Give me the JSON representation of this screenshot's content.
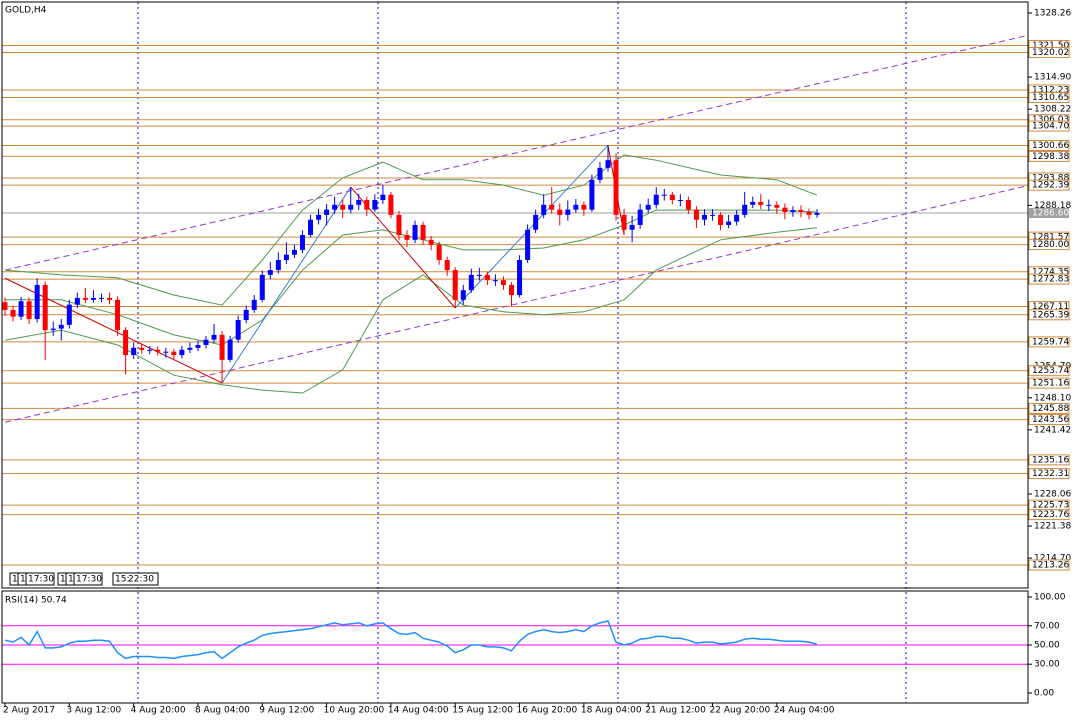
{
  "chart_data": {
    "type": "candlestick",
    "title": "GOLD,H4",
    "categories": [
      "2 Aug 2017",
      null,
      null,
      null,
      null,
      null,
      null,
      null,
      "3 Aug 12:00",
      null,
      null,
      null,
      null,
      null,
      null,
      null,
      "4 Aug 20:00",
      null,
      null,
      null,
      null,
      null,
      null,
      null,
      "8 Aug 04:00",
      null,
      null,
      null,
      null,
      null,
      null,
      null,
      "9 Aug 12:00",
      null,
      null,
      null,
      null,
      null,
      null,
      null,
      "10 Aug 20:00",
      null,
      null,
      null,
      null,
      null,
      null,
      null,
      "14 Aug 04:00",
      null,
      null,
      null,
      null,
      null,
      null,
      null,
      "15 Aug 12:00",
      null,
      null,
      null,
      null,
      null,
      null,
      null,
      "16 Aug 20:00",
      null,
      null,
      null,
      null,
      null,
      null,
      null,
      "18 Aug 04:00",
      null,
      null,
      null,
      null,
      null,
      null,
      null,
      "21 Aug 12:00",
      null,
      null,
      null,
      null,
      null,
      null,
      null,
      "22 Aug 20:00",
      null,
      null,
      null,
      null,
      null,
      null,
      null,
      "24 Aug 04:00",
      null,
      null,
      null,
      null,
      null
    ],
    "open": [
      1268.0,
      1266.4,
      1265.0,
      1268.2,
      1264.5,
      1271.6,
      1262.2,
      1262.5,
      1263.3,
      1267.5,
      1268.9,
      1268.5,
      1268.9,
      1268.9,
      1268.5,
      1262.2,
      1257.0,
      1258.5,
      1258.1,
      1258.1,
      1257.7,
      1257.7,
      1257.0,
      1258.1,
      1258.5,
      1259.1,
      1260.2,
      1261.2,
      1256.0,
      1260.2,
      1264.3,
      1266.4,
      1268.5,
      1273.7,
      1274.7,
      1276.8,
      1277.9,
      1278.9,
      1282.0,
      1285.2,
      1286.2,
      1287.3,
      1288.3,
      1287.3,
      1288.3,
      1289.3,
      1287.3,
      1289.3,
      1290.4,
      1286.2,
      1282.0,
      1281.0,
      1284.1,
      1281.0,
      1280.0,
      1276.8,
      1274.7,
      1268.5,
      1270.5,
      1273.7,
      1273.7,
      1272.6,
      1272.6,
      1271.6,
      1269.5,
      1276.8,
      1283.1,
      1286.2,
      1288.3,
      1287.3,
      1286.2,
      1287.3,
      1288.3,
      1287.3,
      1293.5,
      1296.0,
      1297.6,
      1286.2,
      1283.1,
      1284.1,
      1287.3,
      1288.3,
      1290.4,
      1290.4,
      1289.3,
      1289.3,
      1287.3,
      1285.2,
      1286.2,
      1286.2,
      1284.1,
      1284.8,
      1286.2,
      1288.3,
      1288.9,
      1288.3,
      1288.3,
      1287.7,
      1286.8,
      1287.2,
      1286.8,
      1286.2
    ],
    "high": [
      1269.0,
      1267.3,
      1269.1,
      1269.0,
      1273.0,
      1272.3,
      1264.0,
      1264.5,
      1268.5,
      1270.0,
      1271.0,
      1270.5,
      1269.8,
      1270.0,
      1269.2,
      1262.8,
      1259.6,
      1259.2,
      1258.9,
      1258.8,
      1258.5,
      1258.3,
      1258.9,
      1259.6,
      1260.0,
      1261.0,
      1263.5,
      1262.0,
      1261.0,
      1265.2,
      1267.3,
      1269.5,
      1274.6,
      1276.4,
      1278.4,
      1280.5,
      1280.0,
      1283.0,
      1286.2,
      1287.5,
      1288.5,
      1290.0,
      1289.4,
      1292.0,
      1290.6,
      1290.0,
      1290.5,
      1292.5,
      1291.0,
      1287.0,
      1283.0,
      1285.0,
      1284.8,
      1281.8,
      1280.6,
      1277.5,
      1275.3,
      1271.6,
      1275.0,
      1275.2,
      1274.4,
      1273.8,
      1273.4,
      1272.2,
      1277.8,
      1284.2,
      1287.3,
      1290.5,
      1292.0,
      1288.6,
      1289.2,
      1289.5,
      1289.0,
      1294.6,
      1297.2,
      1300.7,
      1299.0,
      1287.5,
      1286.0,
      1288.5,
      1289.6,
      1292.0,
      1291.6,
      1291.0,
      1290.5,
      1290.0,
      1288.0,
      1287.4,
      1287.4,
      1286.8,
      1286.2,
      1287.2,
      1291.0,
      1290.0,
      1290.5,
      1289.4,
      1289.0,
      1288.6,
      1288.0,
      1288.2,
      1287.5,
      1287.4
    ],
    "low": [
      1265.2,
      1264.0,
      1264.3,
      1263.5,
      1263.8,
      1256.0,
      1261.0,
      1260.0,
      1262.5,
      1266.8,
      1267.8,
      1267.9,
      1268.0,
      1267.6,
      1261.0,
      1253.0,
      1256.2,
      1257.3,
      1257.2,
      1256.9,
      1256.5,
      1256.0,
      1256.3,
      1257.4,
      1257.8,
      1258.4,
      1259.5,
      1251.2,
      1255.5,
      1259.6,
      1263.6,
      1265.8,
      1268.0,
      1272.8,
      1274.0,
      1276.0,
      1277.2,
      1278.2,
      1281.5,
      1284.2,
      1284.0,
      1286.4,
      1285.5,
      1286.5,
      1287.2,
      1286.0,
      1286.8,
      1288.5,
      1285.5,
      1281.0,
      1279.5,
      1280.3,
      1280.0,
      1278.8,
      1275.8,
      1273.5,
      1266.8,
      1267.5,
      1270.0,
      1272.5,
      1271.6,
      1271.4,
      1270.6,
      1267.2,
      1269.0,
      1276.2,
      1282.4,
      1285.5,
      1286.4,
      1284.0,
      1285.0,
      1286.6,
      1286.0,
      1286.8,
      1292.8,
      1295.2,
      1285.0,
      1282.0,
      1280.5,
      1283.3,
      1286.6,
      1287.5,
      1289.2,
      1288.4,
      1288.0,
      1286.4,
      1283.5,
      1284.0,
      1285.0,
      1283.0,
      1283.4,
      1284.0,
      1285.6,
      1287.6,
      1287.4,
      1287.0,
      1286.4,
      1285.3,
      1285.8,
      1285.7,
      1285.3,
      1285.6
    ],
    "close": [
      1266.4,
      1265.0,
      1268.2,
      1264.5,
      1271.6,
      1262.2,
      1262.5,
      1263.3,
      1267.5,
      1268.9,
      1268.5,
      1268.9,
      1268.9,
      1268.5,
      1262.2,
      1257.0,
      1258.5,
      1258.1,
      1258.1,
      1257.7,
      1257.7,
      1257.0,
      1258.1,
      1258.5,
      1259.1,
      1260.2,
      1261.2,
      1256.0,
      1260.2,
      1264.3,
      1266.4,
      1268.5,
      1273.7,
      1274.7,
      1276.8,
      1277.9,
      1278.9,
      1282.0,
      1285.2,
      1286.2,
      1287.3,
      1288.3,
      1287.3,
      1288.3,
      1289.3,
      1287.3,
      1289.3,
      1290.4,
      1286.2,
      1282.0,
      1281.0,
      1284.1,
      1281.0,
      1280.0,
      1276.8,
      1274.7,
      1268.5,
      1270.5,
      1273.7,
      1273.7,
      1272.6,
      1272.6,
      1271.6,
      1269.5,
      1276.8,
      1283.1,
      1286.2,
      1288.3,
      1287.3,
      1286.2,
      1287.3,
      1288.3,
      1287.3,
      1293.5,
      1296.0,
      1297.6,
      1286.2,
      1283.1,
      1284.1,
      1287.3,
      1288.3,
      1290.4,
      1290.4,
      1289.3,
      1289.3,
      1287.3,
      1285.2,
      1286.2,
      1286.2,
      1284.1,
      1284.8,
      1286.2,
      1288.3,
      1288.9,
      1288.3,
      1288.3,
      1287.7,
      1286.8,
      1287.2,
      1286.8,
      1286.2,
      1286.6
    ],
    "up_color": "#0000ff",
    "down_color": "#ff0000",
    "ylim": [
      1208.47,
      1330.55
    ],
    "yticks": [
      1328.26,
      {
        "value": 1314.9,
        "label": "1314.90"
      },
      1308.22,
      1288.18,
      {
        "value": 1254.7,
        "label": "1254.70"
      },
      {
        "value": 1248.1,
        "label": "1248.10"
      },
      1241.42,
      1228.06,
      1221.38,
      {
        "value": 1214.7,
        "label": "1214.70"
      }
    ],
    "levels": {
      "color": "#d2883c",
      "lines": [
        {
          "value": 1321.5,
          "label": "1321.50"
        },
        {
          "value": 1320.02,
          "label": "1320.02"
        },
        {
          "value": 1312.23,
          "label": "1312.23"
        },
        {
          "value": 1310.65,
          "label": "1310.65"
        },
        {
          "value": 1306.03,
          "label": "1306.03"
        },
        {
          "value": 1304.7,
          "label": "1304.70"
        },
        {
          "value": 1300.66,
          "label": "1300.66"
        },
        {
          "value": 1298.38,
          "label": "1298.38"
        },
        {
          "value": 1293.88,
          "label": "1293.88"
        },
        {
          "value": 1292.39,
          "label": "1292.39"
        },
        {
          "value": 1281.57,
          "label": "1281.57"
        },
        {
          "value": 1280.0,
          "label": "1280.00"
        },
        {
          "value": 1274.35,
          "label": "1274.35"
        },
        {
          "value": 1272.83,
          "label": "1272.83"
        },
        {
          "value": 1267.11,
          "label": "1267.11"
        },
        {
          "value": 1265.39,
          "label": "1265.39"
        },
        {
          "value": 1259.74,
          "label": "1259.74"
        },
        {
          "value": 1253.74,
          "label": "1253.74"
        },
        {
          "value": 1251.16,
          "label": "1251.16"
        },
        {
          "value": 1245.88,
          "label": "1245.88"
        },
        {
          "value": 1243.56,
          "label": "1243.56"
        },
        {
          "value": 1235.16,
          "label": "1235.16"
        },
        {
          "value": 1232.31,
          "label": "1232.31"
        },
        {
          "value": 1225.73,
          "label": "1225.73"
        },
        {
          "value": 1223.76,
          "label": "1223.76"
        },
        {
          "value": 1213.26,
          "label": "1213.26"
        }
      ]
    },
    "last_price": {
      "value": 1286.6,
      "label": "1286.60",
      "color": "#a0a0a0"
    },
    "bands": {
      "color": "#4e9a4e",
      "x": [
        0,
        7,
        14,
        21,
        27,
        32,
        37,
        42,
        47,
        52,
        57,
        62,
        67,
        72,
        77,
        81,
        89,
        96,
        101
      ],
      "upper": [
        1274.7,
        1273.7,
        1273.1,
        1269.5,
        1267.4,
        1276.8,
        1287.2,
        1293.9,
        1297.2,
        1293.5,
        1293.5,
        1292.4,
        1290.3,
        1292.4,
        1298.7,
        1297.6,
        1294.5,
        1293.5,
        1290.3
      ],
      "middle": [
        1268.5,
        1268.5,
        1265.4,
        1261.2,
        1259.1,
        1264.3,
        1274.7,
        1282.0,
        1283.1,
        1281.0,
        1278.9,
        1278.9,
        1279.3,
        1281.0,
        1284.1,
        1287.2,
        1287.2,
        1287.2,
        1286.8
      ],
      "lower": [
        1260.1,
        1262.2,
        1259.1,
        1252.8,
        1250.8,
        1249.7,
        1249.1,
        1253.9,
        1268.5,
        1273.7,
        1267.4,
        1266.0,
        1265.4,
        1266.0,
        1268.5,
        1274.7,
        1281.0,
        1282.6,
        1283.5
      ]
    },
    "zigzag": {
      "up_color": "#3a7bd5",
      "down_color": "#cc0000",
      "x": [
        0,
        27,
        43,
        56,
        75,
        77
      ],
      "y": [
        1273.0,
        1251.2,
        1292.0,
        1266.8,
        1300.7,
        1282.0
      ]
    },
    "channel": {
      "color": "#9932cc",
      "lines": [
        {
          "x": [
            0,
            127.5
          ],
          "y": [
            1274.7,
            1323.7
          ]
        },
        {
          "x": [
            0,
            127.5
          ],
          "y": [
            1243.0,
            1292.4
          ]
        }
      ]
    },
    "rsi": {
      "title": "RSI(14) 50.74",
      "color": "#1e90ff",
      "level_color": "#ff00ff",
      "values": [
        55,
        53,
        58,
        50,
        64,
        47,
        47,
        48,
        52,
        54,
        54,
        55,
        55,
        54,
        42,
        36,
        38,
        38,
        38,
        37,
        37,
        36,
        38,
        39,
        40,
        42,
        43,
        36,
        42,
        48,
        52,
        55,
        60,
        62,
        63,
        64,
        65,
        66,
        67,
        69,
        71,
        73,
        71,
        72,
        73,
        70,
        72,
        73,
        67,
        62,
        61,
        63,
        57,
        55,
        53,
        49,
        42,
        45,
        50,
        50,
        48,
        48,
        47,
        44,
        54,
        61,
        64,
        66,
        64,
        63,
        64,
        66,
        64,
        70,
        73,
        75,
        53,
        50,
        52,
        56,
        57,
        59,
        59,
        57,
        57,
        55,
        52,
        53,
        53,
        51,
        52,
        53,
        56,
        57,
        56,
        56,
        55,
        54,
        54,
        54,
        53,
        50.74
      ],
      "ylim": [
        -10.42,
        106.25
      ],
      "yticks": [
        {
          "value": 100,
          "label": "100.00"
        },
        {
          "value": 70,
          "label": "70.00"
        },
        {
          "value": 50,
          "label": "50.00"
        },
        {
          "value": 30,
          "label": "30.00"
        },
        {
          "value": 0,
          "label": "0.00"
        }
      ],
      "levels": [
        70,
        50,
        30
      ]
    },
    "badges": [
      "1",
      "1",
      "17:30",
      "1",
      "1",
      "17:30",
      "15:",
      "22:30"
    ]
  }
}
